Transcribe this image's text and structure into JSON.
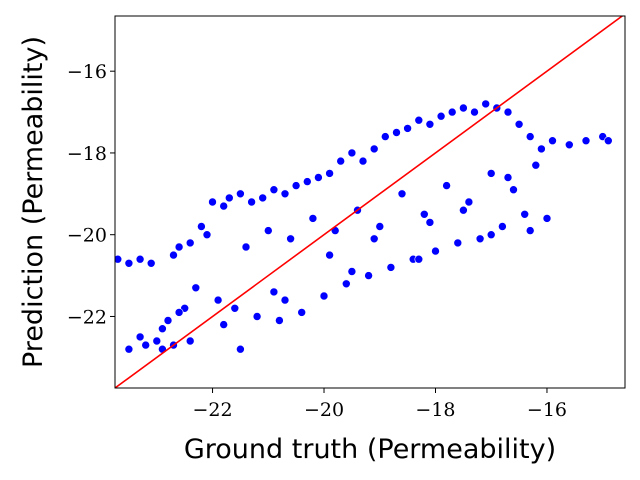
{
  "chart_data": {
    "type": "scatter",
    "title": "",
    "xlabel": "Ground truth (Permeability)",
    "ylabel": "Prediction (Permeability)",
    "xlim": [
      -23.75,
      -14.6
    ],
    "ylim": [
      -23.75,
      -14.65
    ],
    "x_ticks": [
      -22,
      -20,
      -18,
      -16
    ],
    "y_ticks": [
      -22,
      -20,
      -18,
      -16
    ],
    "x_tick_labels": [
      "−22",
      "−20",
      "−18",
      "−16"
    ],
    "y_tick_labels": [
      "−22",
      "−20",
      "−18",
      "−16"
    ],
    "grid": false,
    "legend": "none",
    "reference_line": {
      "from": [
        -23.75,
        -23.75
      ],
      "to": [
        -14.6,
        -14.6
      ],
      "color": "#ff0000"
    },
    "marker_color": "#0000ff",
    "marker_edge_color": "#ffffff",
    "series": [
      {
        "x": [
          -23.7,
          -23.5,
          -23.3,
          -23.1,
          -23.5,
          -23.2,
          -23.0,
          -22.9,
          -22.8,
          -22.7,
          -22.6,
          -22.5,
          -22.4,
          -22.2,
          -22.0,
          -21.8,
          -21.7,
          -21.5,
          -21.3,
          -21.1,
          -20.9,
          -20.7,
          -20.5,
          -20.3,
          -20.1,
          -19.9,
          -19.7,
          -19.5,
          -19.3,
          -19.1,
          -18.9,
          -18.7,
          -18.5,
          -18.3,
          -18.1,
          -17.9,
          -17.7,
          -17.5,
          -17.3,
          -17.1,
          -16.9,
          -16.7,
          -16.5,
          -16.3,
          -16.1,
          -15.9,
          -15.6,
          -15.3,
          -15.0,
          -14.9,
          -22.3,
          -21.9,
          -21.6,
          -21.2,
          -20.8,
          -20.4,
          -20.0,
          -19.6,
          -19.2,
          -18.8,
          -18.4,
          -18.0,
          -17.6,
          -17.2,
          -16.8,
          -16.4,
          -16.0,
          -22.1,
          -21.4,
          -20.6,
          -19.8,
          -19.0,
          -18.2,
          -17.4,
          -16.6,
          -21.0,
          -20.2,
          -19.4,
          -18.6,
          -17.8,
          -17.0,
          -16.2,
          -22.6,
          -21.8,
          -20.7,
          -19.5,
          -18.3,
          -17.0,
          -22.4,
          -20.9,
          -19.1,
          -17.5,
          -16.3,
          -21.5,
          -19.9,
          -18.1,
          -16.7,
          -23.3,
          -22.9,
          -22.7
        ],
        "y": [
          -20.6,
          -20.7,
          -20.6,
          -20.7,
          -22.8,
          -22.7,
          -22.6,
          -22.3,
          -22.1,
          -20.5,
          -20.3,
          -21.8,
          -20.2,
          -19.8,
          -19.2,
          -19.3,
          -19.1,
          -19.0,
          -19.2,
          -19.1,
          -18.9,
          -19.0,
          -18.8,
          -18.7,
          -18.6,
          -18.5,
          -18.2,
          -18.0,
          -18.2,
          -17.9,
          -17.6,
          -17.5,
          -17.4,
          -17.2,
          -17.3,
          -17.1,
          -17.0,
          -16.9,
          -17.0,
          -16.8,
          -16.9,
          -17.0,
          -17.3,
          -17.6,
          -17.9,
          -17.7,
          -17.8,
          -17.7,
          -17.6,
          -17.7,
          -21.3,
          -21.6,
          -21.8,
          -22.0,
          -22.1,
          -21.9,
          -21.5,
          -21.2,
          -21.0,
          -20.8,
          -20.6,
          -20.4,
          -20.2,
          -20.1,
          -19.8,
          -19.5,
          -19.6,
          -20.0,
          -20.3,
          -20.1,
          -19.9,
          -19.8,
          -19.5,
          -19.2,
          -18.9,
          -19.9,
          -19.6,
          -19.4,
          -19.0,
          -18.8,
          -18.5,
          -18.3,
          -21.9,
          -22.2,
          -21.6,
          -20.9,
          -20.6,
          -20.0,
          -22.6,
          -21.4,
          -20.1,
          -19.4,
          -19.9,
          -22.8,
          -20.5,
          -19.7,
          -18.6,
          -22.5,
          -22.8,
          -22.7
        ]
      }
    ]
  }
}
